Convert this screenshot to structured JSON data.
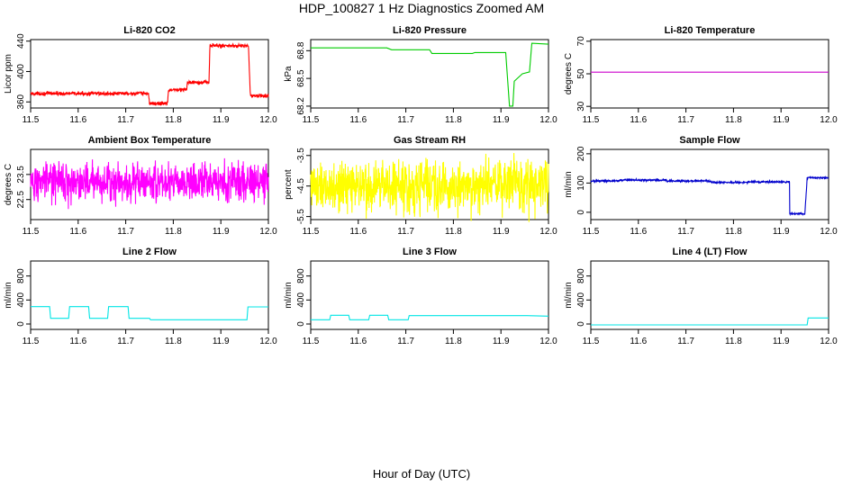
{
  "title": "HDP_100827  1 Hz Diagnostics Zoomed AM",
  "xlabel": "Hour of Day (UTC)",
  "chart_data": [
    {
      "type": "line",
      "title": "Li-820 CO2",
      "ylabel": "Licor ppm",
      "color": "#ff0000",
      "noise": 1.2,
      "xlim": [
        11.5,
        12.0
      ],
      "ylim": [
        352,
        442
      ],
      "xticks": [
        "11.5",
        "11.6",
        "11.7",
        "11.8",
        "11.9",
        "12.0"
      ],
      "yticks": [
        "360",
        "400",
        "440"
      ],
      "series": [
        {
          "x": [
            11.5,
            11.748,
            11.75,
            11.788,
            11.79,
            11.828,
            11.83,
            11.875,
            11.877,
            11.958,
            11.962,
            12.0
          ],
          "y": [
            371,
            371,
            358,
            358,
            376,
            376,
            386,
            386,
            434,
            434,
            368,
            368
          ]
        }
      ]
    },
    {
      "type": "line",
      "title": "Li-820 Pressure",
      "ylabel": "kPa",
      "color": "#00cc00",
      "noise": 0,
      "xlim": [
        11.5,
        12.0
      ],
      "ylim": [
        68.18,
        68.92
      ],
      "xticks": [
        "11.5",
        "11.6",
        "11.7",
        "11.8",
        "11.9",
        "12.0"
      ],
      "yticks": [
        "68.2",
        "68.5",
        "68.8"
      ],
      "series": [
        {
          "x": [
            11.5,
            11.55,
            11.56,
            11.66,
            11.67,
            11.75,
            11.755,
            11.84,
            11.845,
            11.91,
            11.918,
            11.925,
            11.928,
            11.945,
            11.96,
            11.965,
            12.0
          ],
          "y": [
            68.83,
            68.83,
            68.83,
            68.83,
            68.81,
            68.81,
            68.77,
            68.77,
            68.78,
            68.78,
            68.2,
            68.2,
            68.47,
            68.55,
            68.57,
            68.88,
            68.87
          ]
        }
      ]
    },
    {
      "type": "line",
      "title": "Li-820 Temperature",
      "ylabel": "degrees C",
      "color": "#cc00cc",
      "noise": 0,
      "xlim": [
        11.5,
        12.0
      ],
      "ylim": [
        29,
        71
      ],
      "xticks": [
        "11.5",
        "11.6",
        "11.7",
        "11.8",
        "11.9",
        "12.0"
      ],
      "yticks": [
        "30",
        "50",
        "70"
      ],
      "series": [
        {
          "x": [
            11.5,
            12.0
          ],
          "y": [
            51,
            51
          ]
        }
      ]
    },
    {
      "type": "line",
      "title": "Ambient Box Temperature",
      "ylabel": "degrees C",
      "color": "#ff00ff",
      "noise": 0.38,
      "xlim": [
        11.5,
        12.0
      ],
      "ylim": [
        21.7,
        24.5
      ],
      "xticks": [
        "11.5",
        "11.6",
        "11.7",
        "11.8",
        "11.9",
        "12.0"
      ],
      "yticks": [
        "22.5",
        "23.5"
      ],
      "series": [
        {
          "x": [
            11.5,
            12.0
          ],
          "y": [
            23.2,
            23.2
          ]
        }
      ]
    },
    {
      "type": "line",
      "title": "Gas Stream RH",
      "ylabel": "percent",
      "color": "#ffff00",
      "noise": 0.42,
      "xlim": [
        11.5,
        12.0
      ],
      "ylim": [
        -5.6,
        -3.3
      ],
      "xticks": [
        "11.5",
        "11.6",
        "11.7",
        "11.8",
        "11.9",
        "12.0"
      ],
      "yticks": [
        "-5.5",
        "-4.5",
        "-3.5"
      ],
      "series": [
        {
          "x": [
            11.5,
            12.0
          ],
          "y": [
            -4.5,
            -4.5
          ]
        }
      ]
    },
    {
      "type": "line",
      "title": "Sample Flow",
      "ylabel": "ml/min",
      "color": "#0000cc",
      "noise": 1.5,
      "xlim": [
        11.5,
        12.0
      ],
      "ylim": [
        -25,
        215
      ],
      "xticks": [
        "11.5",
        "11.6",
        "11.7",
        "11.8",
        "11.9",
        "12.0"
      ],
      "yticks": [
        "0",
        "100",
        "200"
      ],
      "series": [
        {
          "x": [
            11.5,
            11.55,
            11.56,
            11.65,
            11.66,
            11.75,
            11.755,
            11.82,
            11.83,
            11.91,
            11.918,
            11.95,
            11.955,
            12.0
          ],
          "y": [
            107,
            107,
            110,
            110,
            107,
            107,
            102,
            102,
            104,
            104,
            -5,
            -5,
            118,
            116
          ]
        }
      ]
    },
    {
      "type": "line",
      "title": "Line 2 Flow",
      "ylabel": "ml/min",
      "color": "#00e5e5",
      "noise": 0,
      "xlim": [
        11.5,
        12.0
      ],
      "ylim": [
        -90,
        1050
      ],
      "xticks": [
        "11.5",
        "11.6",
        "11.7",
        "11.8",
        "11.9",
        "12.0"
      ],
      "yticks": [
        "0",
        "400",
        "800"
      ],
      "series": [
        {
          "x": [
            11.5,
            11.54,
            11.542,
            11.58,
            11.582,
            11.622,
            11.624,
            11.662,
            11.664,
            11.705,
            11.707,
            11.75,
            11.752,
            11.955,
            11.957,
            12.0
          ],
          "y": [
            290,
            290,
            95,
            95,
            290,
            290,
            95,
            95,
            290,
            290,
            95,
            95,
            70,
            70,
            285,
            285
          ]
        }
      ]
    },
    {
      "type": "line",
      "title": "Line 3 Flow",
      "ylabel": "ml/min",
      "color": "#00e5e5",
      "noise": 0,
      "xlim": [
        11.5,
        12.0
      ],
      "ylim": [
        -90,
        1050
      ],
      "xticks": [
        "11.5",
        "11.6",
        "11.7",
        "11.8",
        "11.9",
        "12.0"
      ],
      "yticks": [
        "0",
        "400",
        "800"
      ],
      "series": [
        {
          "x": [
            11.5,
            11.54,
            11.542,
            11.58,
            11.582,
            11.622,
            11.624,
            11.662,
            11.664,
            11.705,
            11.707,
            11.955,
            12.0
          ],
          "y": [
            70,
            70,
            145,
            145,
            70,
            70,
            145,
            145,
            70,
            70,
            140,
            140,
            130
          ]
        }
      ]
    },
    {
      "type": "line",
      "title": "Line 4 (LT) Flow",
      "ylabel": "ml/min",
      "color": "#00e5e5",
      "noise": 0,
      "xlim": [
        11.5,
        12.0
      ],
      "ylim": [
        -90,
        1050
      ],
      "xticks": [
        "11.5",
        "11.6",
        "11.7",
        "11.8",
        "11.9",
        "12.0"
      ],
      "yticks": [
        "0",
        "400",
        "800"
      ],
      "series": [
        {
          "x": [
            11.5,
            11.955,
            11.957,
            12.0
          ],
          "y": [
            -15,
            -15,
            100,
            100
          ]
        }
      ]
    }
  ]
}
